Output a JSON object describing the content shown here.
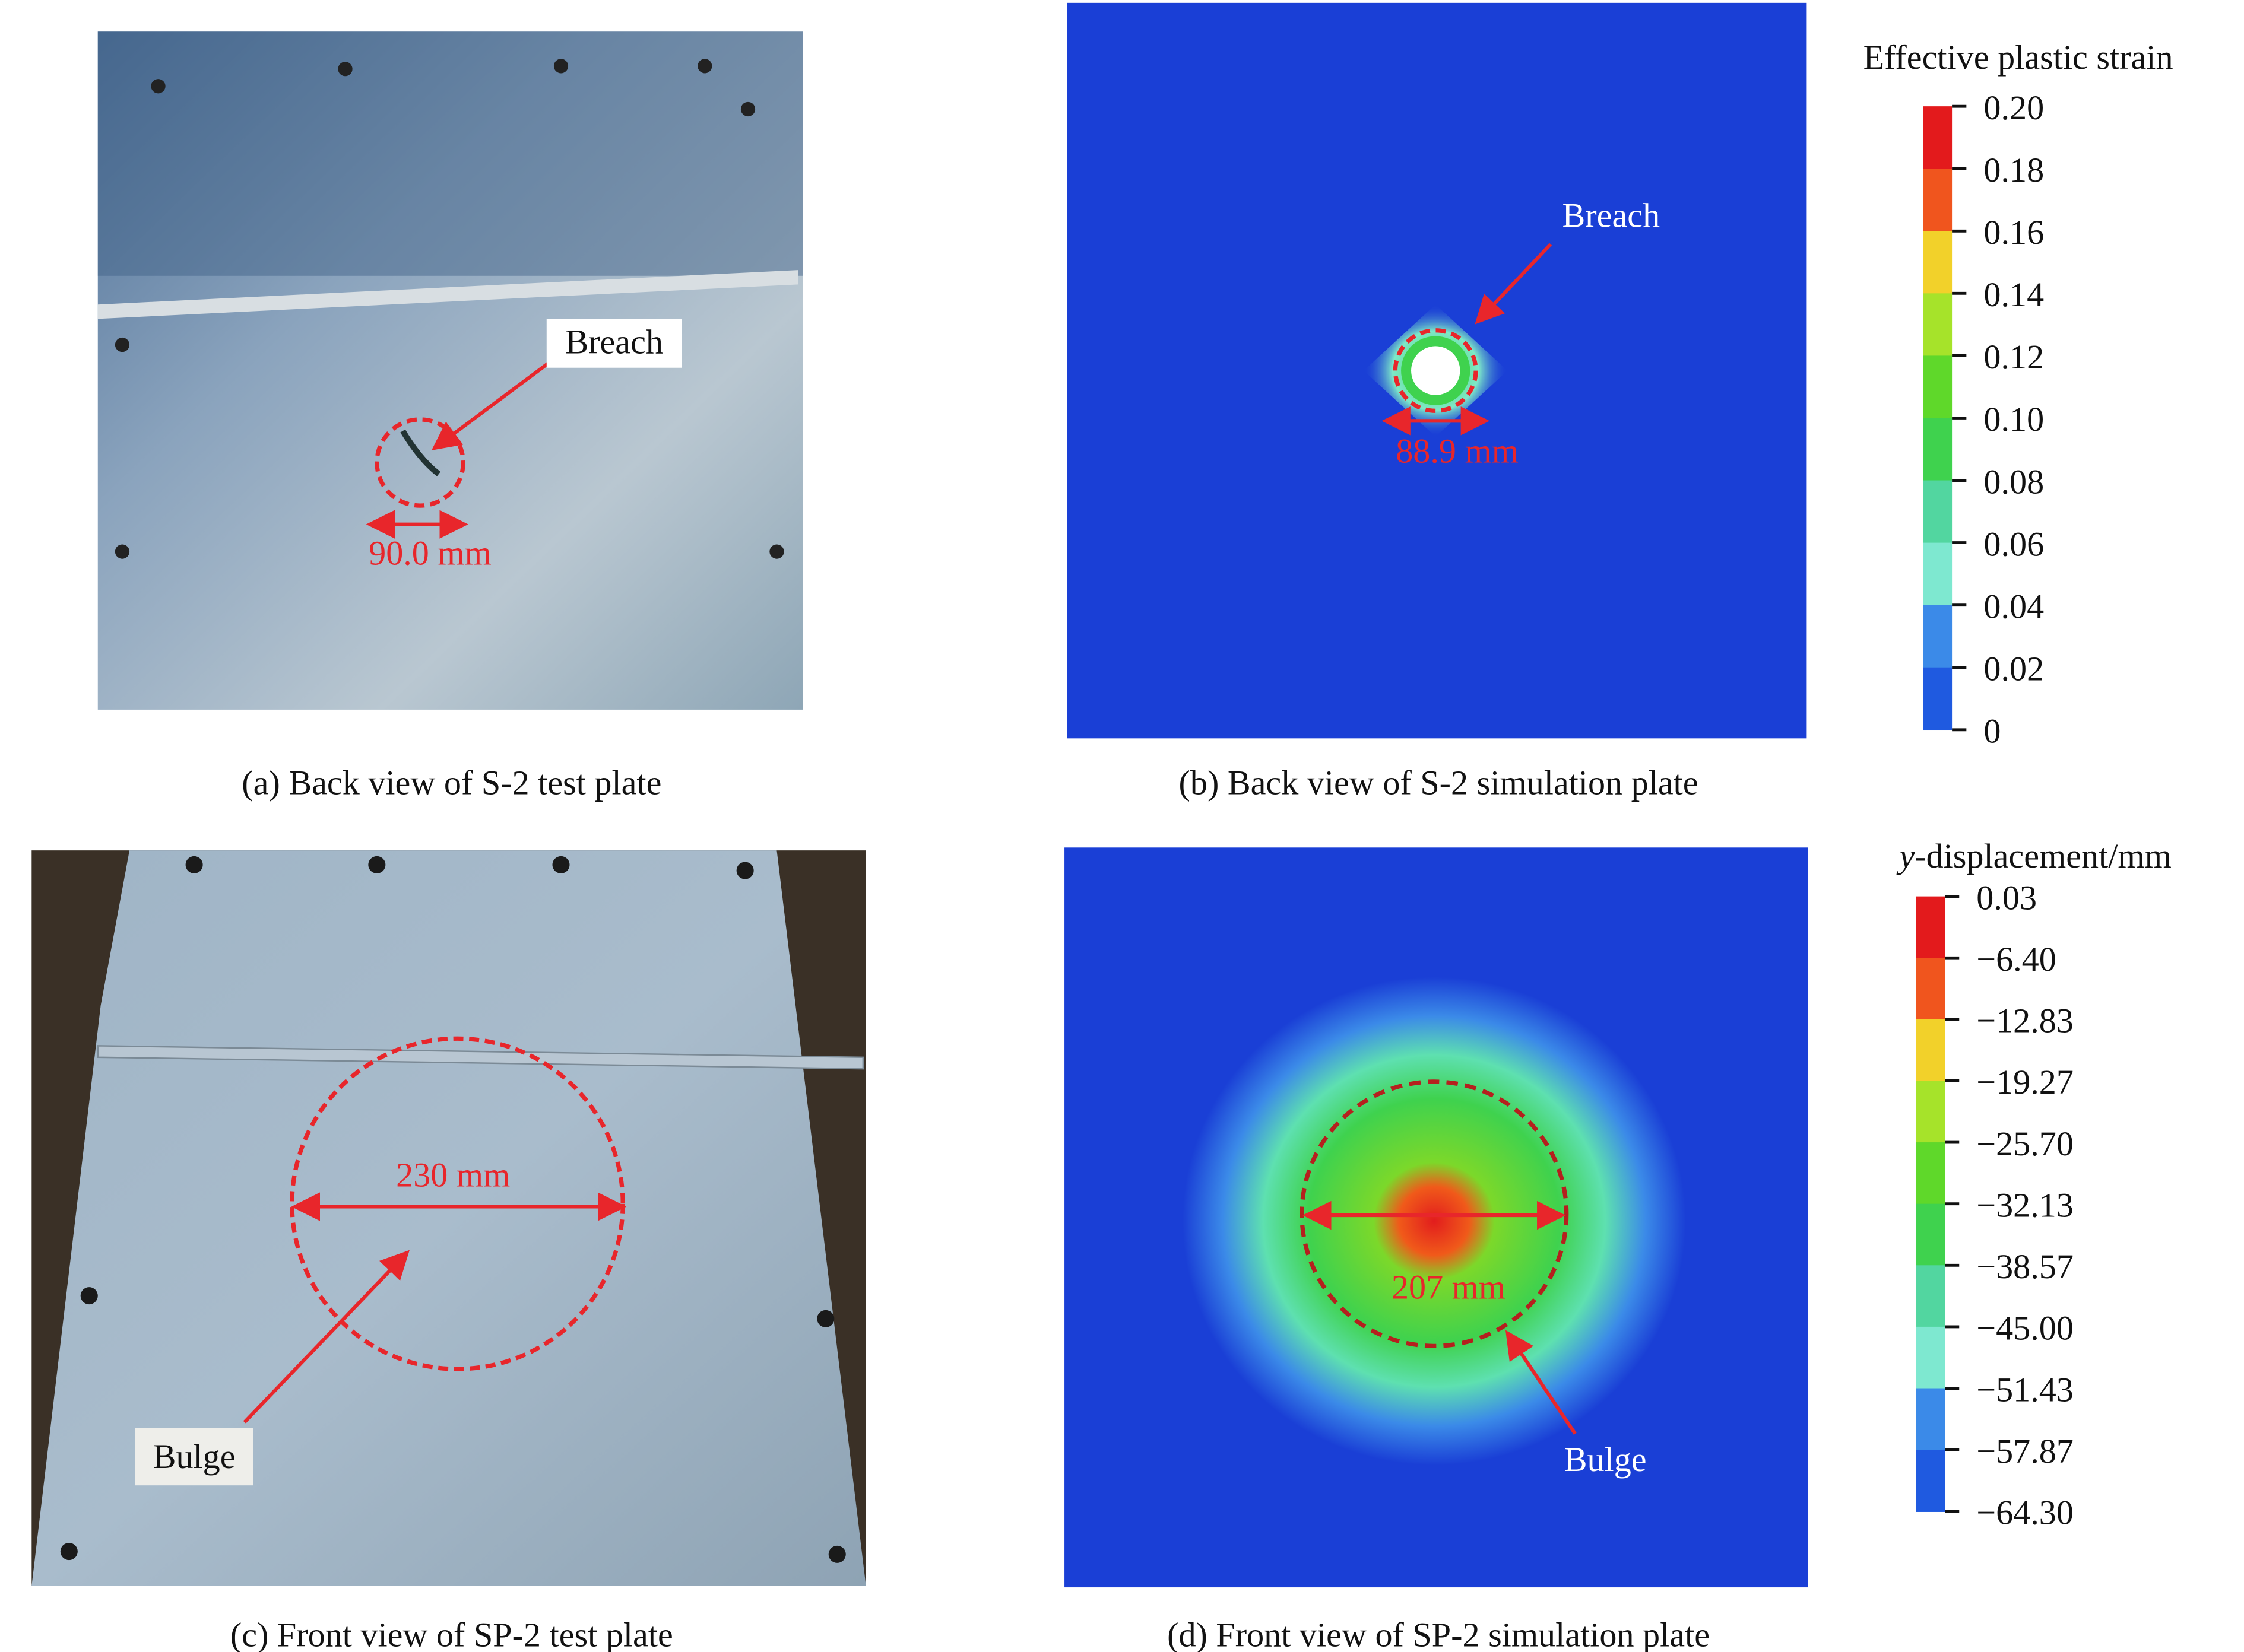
{
  "panels": [
    {
      "caption": "(a) Back view of S-2 test plate",
      "annotations": [
        "Breach",
        "90.0 mm"
      ]
    },
    {
      "caption": "(b) Back view of S-2 simulation plate",
      "annotations": [
        "Breach",
        "88.9 mm"
      ]
    },
    {
      "caption": "(c) Front view of SP-2 test plate",
      "annotations": [
        "230 mm",
        "Bulge"
      ]
    },
    {
      "caption": "(d) Front view of SP-2 simulation plate",
      "annotations": [
        "207 mm",
        "Bulge"
      ]
    }
  ],
  "colorbars": [
    {
      "title": [
        "Effective plastic strain"
      ],
      "labels": [
        "0.20",
        "0.18",
        "0.16",
        "0.14",
        "0.12",
        "0.10",
        "0.08",
        "0.06",
        "0.04",
        "0.02",
        "0"
      ]
    },
    {
      "title": [
        "y",
        "-displacement/mm"
      ],
      "labels": [
        "0.03",
        "−6.40",
        "−12.83",
        "−19.27",
        "−25.70",
        "−32.13",
        "−38.57",
        "−45.00",
        "−51.43",
        "−57.87",
        "−64.30"
      ]
    }
  ]
}
